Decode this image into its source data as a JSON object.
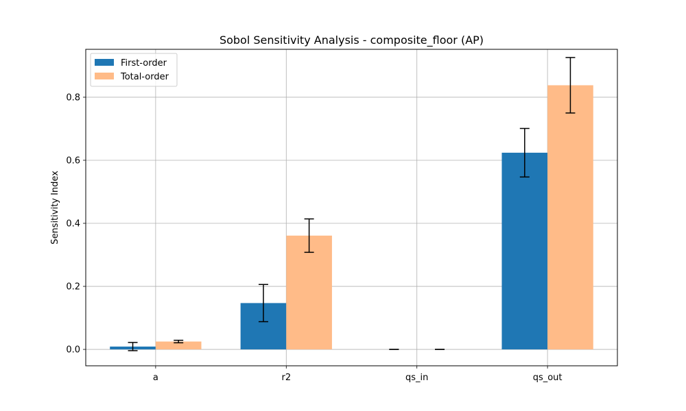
{
  "chart_data": {
    "type": "bar",
    "title": "Sobol Sensitivity Analysis - composite_floor (AP)",
    "xlabel": "",
    "ylabel": "Sensitivity Index",
    "categories": [
      "a",
      "r2",
      "qs_in",
      "qs_out"
    ],
    "series": [
      {
        "name": "First-order",
        "color": "#1f77b4",
        "values": [
          0.009,
          0.147,
          0.0,
          0.624
        ],
        "errors": [
          0.013,
          0.059,
          0.0,
          0.077
        ]
      },
      {
        "name": "Total-order",
        "color": "#ffbb88",
        "values": [
          0.025,
          0.361,
          0.0,
          0.838
        ],
        "errors": [
          0.004,
          0.053,
          0.0,
          0.088
        ]
      }
    ],
    "ylim": [
      -0.052,
      0.952
    ],
    "yticks": [
      0.0,
      0.2,
      0.4,
      0.6,
      0.8
    ],
    "ytick_labels": [
      "0.0",
      "0.2",
      "0.4",
      "0.6",
      "0.8"
    ],
    "grid": true,
    "legend_position": "top-left"
  }
}
